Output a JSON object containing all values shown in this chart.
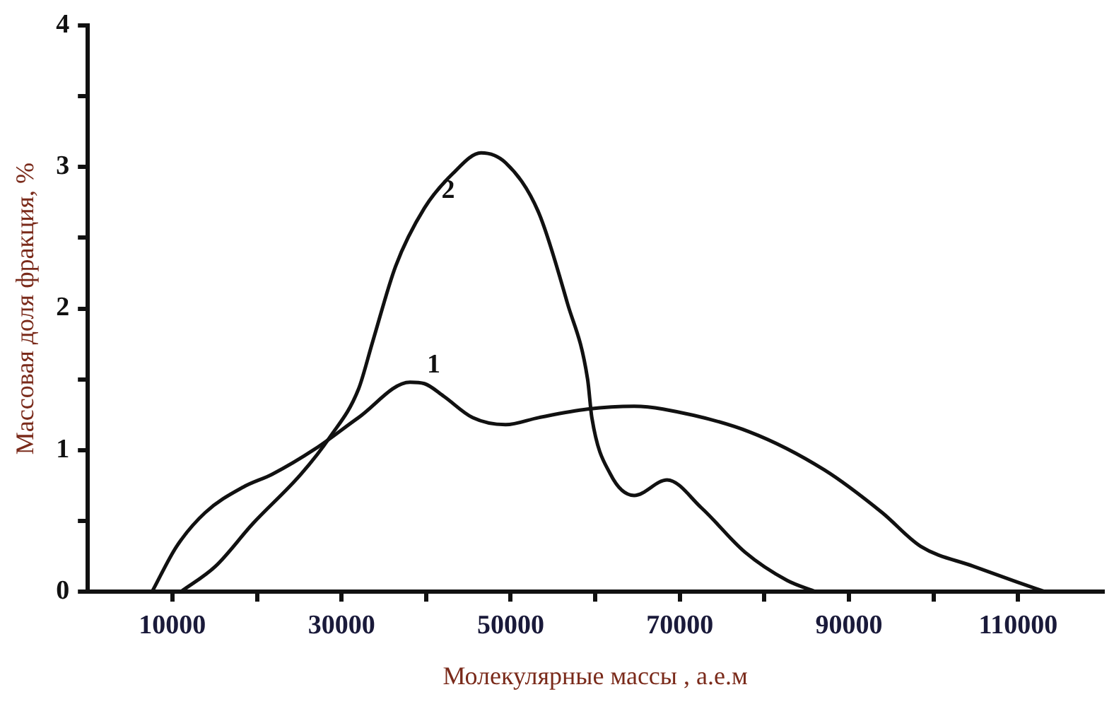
{
  "chart_data": {
    "type": "line",
    "xlabel": "Молекулярные массы , а.е.м",
    "ylabel": "Массовая доля фракция, %",
    "series": [
      {
        "name": "1",
        "color": "#111111",
        "x": [
          7600,
          10500,
          13900,
          18400,
          21800,
          26900,
          32000,
          38100,
          39800,
          42100,
          45500,
          49400,
          53300,
          59100,
          64600,
          68000,
          78200,
          87100,
          93900,
          98500,
          104700,
          109800,
          113200
        ],
        "values": [
          0,
          0.32,
          0.56,
          0.74,
          0.83,
          1.01,
          1.23,
          1.48,
          1.47,
          1.38,
          1.23,
          1.18,
          1.23,
          1.29,
          1.31,
          1.29,
          1.13,
          0.86,
          0.56,
          0.32,
          0.18,
          0.07,
          0
        ]
      },
      {
        "name": "2",
        "color": "#111111",
        "x": [
          11000,
          15100,
          19500,
          25200,
          28600,
          32000,
          33700,
          36400,
          39800,
          43100,
          46500,
          49400,
          53300,
          56700,
          59100,
          59600,
          61800,
          64600,
          68500,
          72600,
          77700,
          82700,
          86100
        ],
        "values": [
          0,
          0.18,
          0.48,
          0.83,
          1.09,
          1.43,
          1.77,
          2.3,
          2.71,
          2.95,
          3.1,
          3.03,
          2.68,
          2.04,
          1.5,
          1.23,
          0.83,
          0.68,
          0.79,
          0.59,
          0.28,
          0.08,
          0
        ]
      }
    ],
    "xlim": [
      0,
      120000
    ],
    "xticks": [
      {
        "value": 10000,
        "label": "10000"
      },
      {
        "value": 20000,
        "label": null
      },
      {
        "value": 30000,
        "label": "30000"
      },
      {
        "value": 40000,
        "label": null
      },
      {
        "value": 50000,
        "label": "50000"
      },
      {
        "value": 60000,
        "label": null
      },
      {
        "value": 70000,
        "label": "70000"
      },
      {
        "value": 80000,
        "label": null
      },
      {
        "value": 90000,
        "label": "90000"
      },
      {
        "value": 100000,
        "label": null
      },
      {
        "value": 110000,
        "label": "110000"
      }
    ],
    "ylim": [
      0,
      4
    ],
    "yticks": [
      0,
      {
        "value": 0.5,
        "label": null
      },
      1,
      {
        "value": 1.5,
        "label": null
      },
      2,
      {
        "value": 2.5,
        "label": null
      },
      3,
      {
        "value": 3.5,
        "label": null
      },
      4
    ],
    "marker": "none",
    "line_style": "solid"
  }
}
